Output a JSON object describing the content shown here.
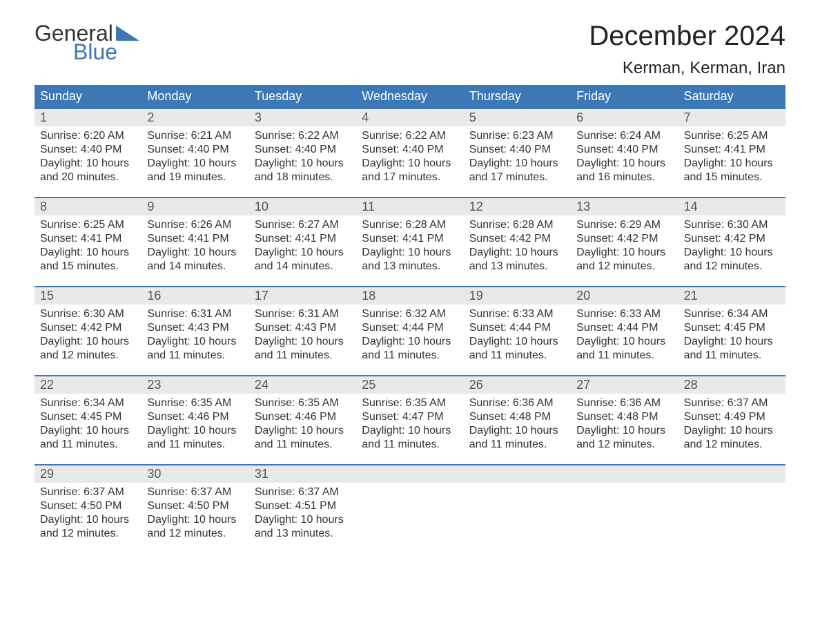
{
  "logo": {
    "text_general": "General",
    "text_blue": "Blue",
    "triangle_color": "#3b78b5"
  },
  "title": "December 2024",
  "location": "Kerman, Kerman, Iran",
  "colors": {
    "header_bg": "#3b78b5",
    "header_text": "#ffffff",
    "daynum_bg": "#e9e9e9",
    "daynum_border": "#3b78b5",
    "body_text": "#333333",
    "daynum_text": "#555555",
    "background": "#ffffff"
  },
  "typography": {
    "title_fontsize": 40,
    "location_fontsize": 24,
    "header_fontsize": 18,
    "daynum_fontsize": 18,
    "cell_fontsize": 16,
    "logo_fontsize": 32
  },
  "day_names": [
    "Sunday",
    "Monday",
    "Tuesday",
    "Wednesday",
    "Thursday",
    "Friday",
    "Saturday"
  ],
  "weeks": [
    [
      {
        "num": "1",
        "sunrise": "Sunrise: 6:20 AM",
        "sunset": "Sunset: 4:40 PM",
        "daylight1": "Daylight: 10 hours",
        "daylight2": "and 20 minutes."
      },
      {
        "num": "2",
        "sunrise": "Sunrise: 6:21 AM",
        "sunset": "Sunset: 4:40 PM",
        "daylight1": "Daylight: 10 hours",
        "daylight2": "and 19 minutes."
      },
      {
        "num": "3",
        "sunrise": "Sunrise: 6:22 AM",
        "sunset": "Sunset: 4:40 PM",
        "daylight1": "Daylight: 10 hours",
        "daylight2": "and 18 minutes."
      },
      {
        "num": "4",
        "sunrise": "Sunrise: 6:22 AM",
        "sunset": "Sunset: 4:40 PM",
        "daylight1": "Daylight: 10 hours",
        "daylight2": "and 17 minutes."
      },
      {
        "num": "5",
        "sunrise": "Sunrise: 6:23 AM",
        "sunset": "Sunset: 4:40 PM",
        "daylight1": "Daylight: 10 hours",
        "daylight2": "and 17 minutes."
      },
      {
        "num": "6",
        "sunrise": "Sunrise: 6:24 AM",
        "sunset": "Sunset: 4:40 PM",
        "daylight1": "Daylight: 10 hours",
        "daylight2": "and 16 minutes."
      },
      {
        "num": "7",
        "sunrise": "Sunrise: 6:25 AM",
        "sunset": "Sunset: 4:41 PM",
        "daylight1": "Daylight: 10 hours",
        "daylight2": "and 15 minutes."
      }
    ],
    [
      {
        "num": "8",
        "sunrise": "Sunrise: 6:25 AM",
        "sunset": "Sunset: 4:41 PM",
        "daylight1": "Daylight: 10 hours",
        "daylight2": "and 15 minutes."
      },
      {
        "num": "9",
        "sunrise": "Sunrise: 6:26 AM",
        "sunset": "Sunset: 4:41 PM",
        "daylight1": "Daylight: 10 hours",
        "daylight2": "and 14 minutes."
      },
      {
        "num": "10",
        "sunrise": "Sunrise: 6:27 AM",
        "sunset": "Sunset: 4:41 PM",
        "daylight1": "Daylight: 10 hours",
        "daylight2": "and 14 minutes."
      },
      {
        "num": "11",
        "sunrise": "Sunrise: 6:28 AM",
        "sunset": "Sunset: 4:41 PM",
        "daylight1": "Daylight: 10 hours",
        "daylight2": "and 13 minutes."
      },
      {
        "num": "12",
        "sunrise": "Sunrise: 6:28 AM",
        "sunset": "Sunset: 4:42 PM",
        "daylight1": "Daylight: 10 hours",
        "daylight2": "and 13 minutes."
      },
      {
        "num": "13",
        "sunrise": "Sunrise: 6:29 AM",
        "sunset": "Sunset: 4:42 PM",
        "daylight1": "Daylight: 10 hours",
        "daylight2": "and 12 minutes."
      },
      {
        "num": "14",
        "sunrise": "Sunrise: 6:30 AM",
        "sunset": "Sunset: 4:42 PM",
        "daylight1": "Daylight: 10 hours",
        "daylight2": "and 12 minutes."
      }
    ],
    [
      {
        "num": "15",
        "sunrise": "Sunrise: 6:30 AM",
        "sunset": "Sunset: 4:42 PM",
        "daylight1": "Daylight: 10 hours",
        "daylight2": "and 12 minutes."
      },
      {
        "num": "16",
        "sunrise": "Sunrise: 6:31 AM",
        "sunset": "Sunset: 4:43 PM",
        "daylight1": "Daylight: 10 hours",
        "daylight2": "and 11 minutes."
      },
      {
        "num": "17",
        "sunrise": "Sunrise: 6:31 AM",
        "sunset": "Sunset: 4:43 PM",
        "daylight1": "Daylight: 10 hours",
        "daylight2": "and 11 minutes."
      },
      {
        "num": "18",
        "sunrise": "Sunrise: 6:32 AM",
        "sunset": "Sunset: 4:44 PM",
        "daylight1": "Daylight: 10 hours",
        "daylight2": "and 11 minutes."
      },
      {
        "num": "19",
        "sunrise": "Sunrise: 6:33 AM",
        "sunset": "Sunset: 4:44 PM",
        "daylight1": "Daylight: 10 hours",
        "daylight2": "and 11 minutes."
      },
      {
        "num": "20",
        "sunrise": "Sunrise: 6:33 AM",
        "sunset": "Sunset: 4:44 PM",
        "daylight1": "Daylight: 10 hours",
        "daylight2": "and 11 minutes."
      },
      {
        "num": "21",
        "sunrise": "Sunrise: 6:34 AM",
        "sunset": "Sunset: 4:45 PM",
        "daylight1": "Daylight: 10 hours",
        "daylight2": "and 11 minutes."
      }
    ],
    [
      {
        "num": "22",
        "sunrise": "Sunrise: 6:34 AM",
        "sunset": "Sunset: 4:45 PM",
        "daylight1": "Daylight: 10 hours",
        "daylight2": "and 11 minutes."
      },
      {
        "num": "23",
        "sunrise": "Sunrise: 6:35 AM",
        "sunset": "Sunset: 4:46 PM",
        "daylight1": "Daylight: 10 hours",
        "daylight2": "and 11 minutes."
      },
      {
        "num": "24",
        "sunrise": "Sunrise: 6:35 AM",
        "sunset": "Sunset: 4:46 PM",
        "daylight1": "Daylight: 10 hours",
        "daylight2": "and 11 minutes."
      },
      {
        "num": "25",
        "sunrise": "Sunrise: 6:35 AM",
        "sunset": "Sunset: 4:47 PM",
        "daylight1": "Daylight: 10 hours",
        "daylight2": "and 11 minutes."
      },
      {
        "num": "26",
        "sunrise": "Sunrise: 6:36 AM",
        "sunset": "Sunset: 4:48 PM",
        "daylight1": "Daylight: 10 hours",
        "daylight2": "and 11 minutes."
      },
      {
        "num": "27",
        "sunrise": "Sunrise: 6:36 AM",
        "sunset": "Sunset: 4:48 PM",
        "daylight1": "Daylight: 10 hours",
        "daylight2": "and 12 minutes."
      },
      {
        "num": "28",
        "sunrise": "Sunrise: 6:37 AM",
        "sunset": "Sunset: 4:49 PM",
        "daylight1": "Daylight: 10 hours",
        "daylight2": "and 12 minutes."
      }
    ],
    [
      {
        "num": "29",
        "sunrise": "Sunrise: 6:37 AM",
        "sunset": "Sunset: 4:50 PM",
        "daylight1": "Daylight: 10 hours",
        "daylight2": "and 12 minutes."
      },
      {
        "num": "30",
        "sunrise": "Sunrise: 6:37 AM",
        "sunset": "Sunset: 4:50 PM",
        "daylight1": "Daylight: 10 hours",
        "daylight2": "and 12 minutes."
      },
      {
        "num": "31",
        "sunrise": "Sunrise: 6:37 AM",
        "sunset": "Sunset: 4:51 PM",
        "daylight1": "Daylight: 10 hours",
        "daylight2": "and 13 minutes."
      },
      null,
      null,
      null,
      null
    ]
  ]
}
